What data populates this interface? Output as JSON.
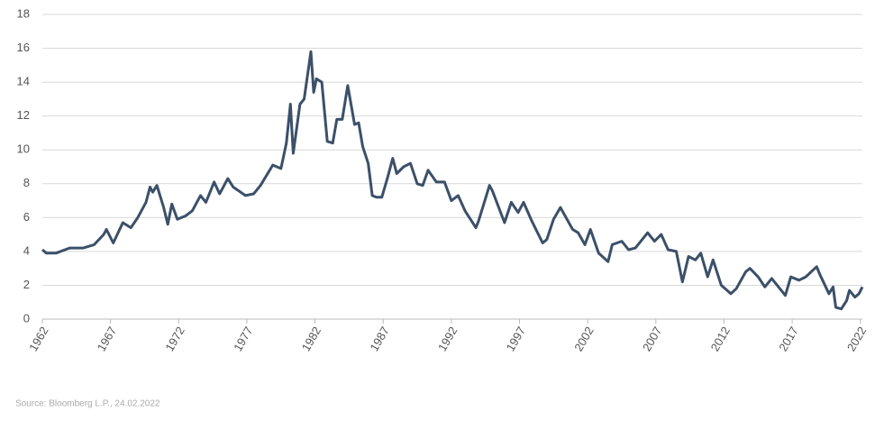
{
  "chart_data": {
    "type": "line",
    "source": "Source: Bloomberg L.P., 24.02.2022",
    "x": [
      1962.0,
      1962.3,
      1963.0,
      1964.0,
      1965.0,
      1965.8,
      1966.5,
      1966.7,
      1967.2,
      1967.9,
      1968.5,
      1969.0,
      1969.6,
      1969.9,
      1970.1,
      1970.4,
      1970.9,
      1971.2,
      1971.5,
      1971.9,
      1972.5,
      1973.0,
      1973.6,
      1974.0,
      1974.6,
      1975.0,
      1975.6,
      1976.0,
      1976.9,
      1977.5,
      1978.0,
      1978.9,
      1979.5,
      1979.9,
      1980.2,
      1980.4,
      1980.9,
      1981.2,
      1981.7,
      1981.9,
      1982.1,
      1982.5,
      1982.9,
      1983.3,
      1983.6,
      1984.0,
      1984.4,
      1984.9,
      1985.2,
      1985.5,
      1985.9,
      1986.2,
      1986.5,
      1986.9,
      1987.3,
      1987.7,
      1988.0,
      1988.5,
      1989.0,
      1989.5,
      1989.9,
      1990.3,
      1990.9,
      1991.5,
      1992.0,
      1992.5,
      1993.0,
      1993.8,
      1994.0,
      1994.8,
      1995.0,
      1995.9,
      1996.4,
      1996.9,
      1997.3,
      1997.9,
      1998.7,
      1999.0,
      1999.5,
      2000.0,
      2000.9,
      2001.3,
      2001.8,
      2002.2,
      2002.8,
      2003.5,
      2003.8,
      2004.5,
      2005.0,
      2005.5,
      2006.4,
      2006.9,
      2007.4,
      2007.9,
      2008.5,
      2008.95,
      2009.4,
      2009.9,
      2010.3,
      2010.8,
      2011.2,
      2011.8,
      2012.5,
      2012.9,
      2013.6,
      2013.9,
      2014.5,
      2015.0,
      2015.5,
      2016.5,
      2016.9,
      2017.5,
      2018.0,
      2018.8,
      2019.0,
      2019.7,
      2020.0,
      2020.2,
      2020.6,
      2021.0,
      2021.2,
      2021.6,
      2021.9,
      2022.15
    ],
    "series": [
      {
        "color": "#3b5069",
        "values": [
          4.1,
          3.9,
          3.9,
          4.2,
          4.2,
          4.4,
          5.0,
          5.3,
          4.5,
          5.7,
          5.4,
          6.0,
          6.9,
          7.8,
          7.5,
          7.9,
          6.6,
          5.6,
          6.8,
          5.9,
          6.1,
          6.4,
          7.3,
          6.9,
          8.1,
          7.4,
          8.3,
          7.8,
          7.3,
          7.4,
          7.9,
          9.1,
          8.9,
          10.4,
          12.7,
          9.8,
          12.7,
          13.0,
          15.8,
          13.4,
          14.2,
          14.0,
          10.5,
          10.4,
          11.8,
          11.8,
          13.8,
          11.5,
          11.6,
          10.2,
          9.2,
          7.3,
          7.2,
          7.2,
          8.3,
          9.5,
          8.6,
          9.0,
          9.2,
          8.0,
          7.9,
          8.8,
          8.1,
          8.1,
          7.0,
          7.3,
          6.4,
          5.4,
          5.8,
          7.9,
          7.6,
          5.7,
          6.9,
          6.3,
          6.9,
          5.8,
          4.5,
          4.7,
          5.9,
          6.6,
          5.3,
          5.1,
          4.4,
          5.3,
          3.9,
          3.4,
          4.4,
          4.6,
          4.1,
          4.2,
          5.1,
          4.6,
          5.0,
          4.1,
          4.0,
          2.2,
          3.7,
          3.5,
          3.9,
          2.5,
          3.5,
          2.0,
          1.5,
          1.8,
          2.8,
          3.0,
          2.5,
          1.9,
          2.4,
          1.4,
          2.5,
          2.3,
          2.5,
          3.1,
          2.7,
          1.5,
          1.9,
          0.7,
          0.6,
          1.1,
          1.7,
          1.3,
          1.5,
          1.9
        ]
      }
    ],
    "xlim": [
      1962,
      2022.15
    ],
    "xticks": [
      1962,
      1967,
      1972,
      1977,
      1982,
      1987,
      1992,
      1997,
      2002,
      2007,
      2012,
      2017,
      2022
    ],
    "ylim": [
      0,
      18
    ],
    "yticks": [
      0,
      2,
      4,
      6,
      8,
      10,
      12,
      14,
      16,
      18
    ],
    "grid": true
  }
}
